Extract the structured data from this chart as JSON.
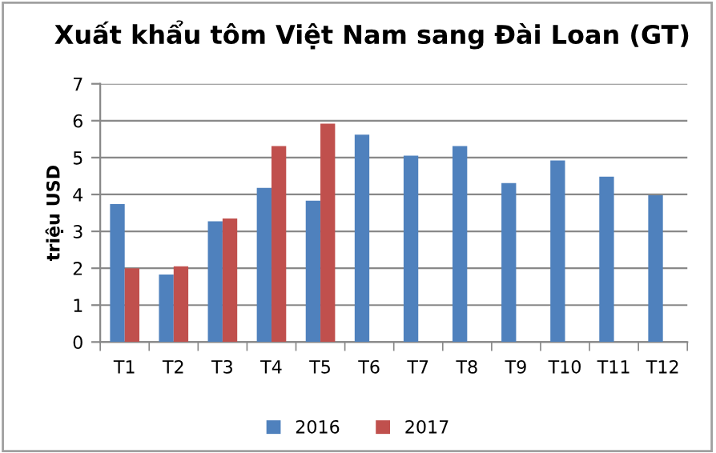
{
  "chart_data": {
    "type": "bar",
    "title": "Xuất khẩu tôm Việt Nam sang Đài Loan (GT)",
    "ylabel": "triệu USD",
    "categories": [
      "T1",
      "T2",
      "T3",
      "T4",
      "T5",
      "T6",
      "T7",
      "T8",
      "T9",
      "T10",
      "T11",
      "T12"
    ],
    "series": [
      {
        "name": "2016",
        "color": "#4f81bd",
        "values": [
          3.74,
          1.83,
          3.27,
          4.18,
          3.83,
          5.62,
          5.05,
          5.31,
          4.31,
          4.92,
          4.48,
          3.98
        ]
      },
      {
        "name": "2017",
        "color": "#c0504d",
        "values": [
          2.0,
          2.05,
          3.35,
          5.31,
          5.92,
          null,
          null,
          null,
          null,
          null,
          null,
          null
        ]
      }
    ],
    "ylim": [
      0,
      7
    ],
    "yticks": [
      0,
      1,
      2,
      3,
      4,
      5,
      6,
      7
    ],
    "grid": "y",
    "legend": "bottom"
  }
}
